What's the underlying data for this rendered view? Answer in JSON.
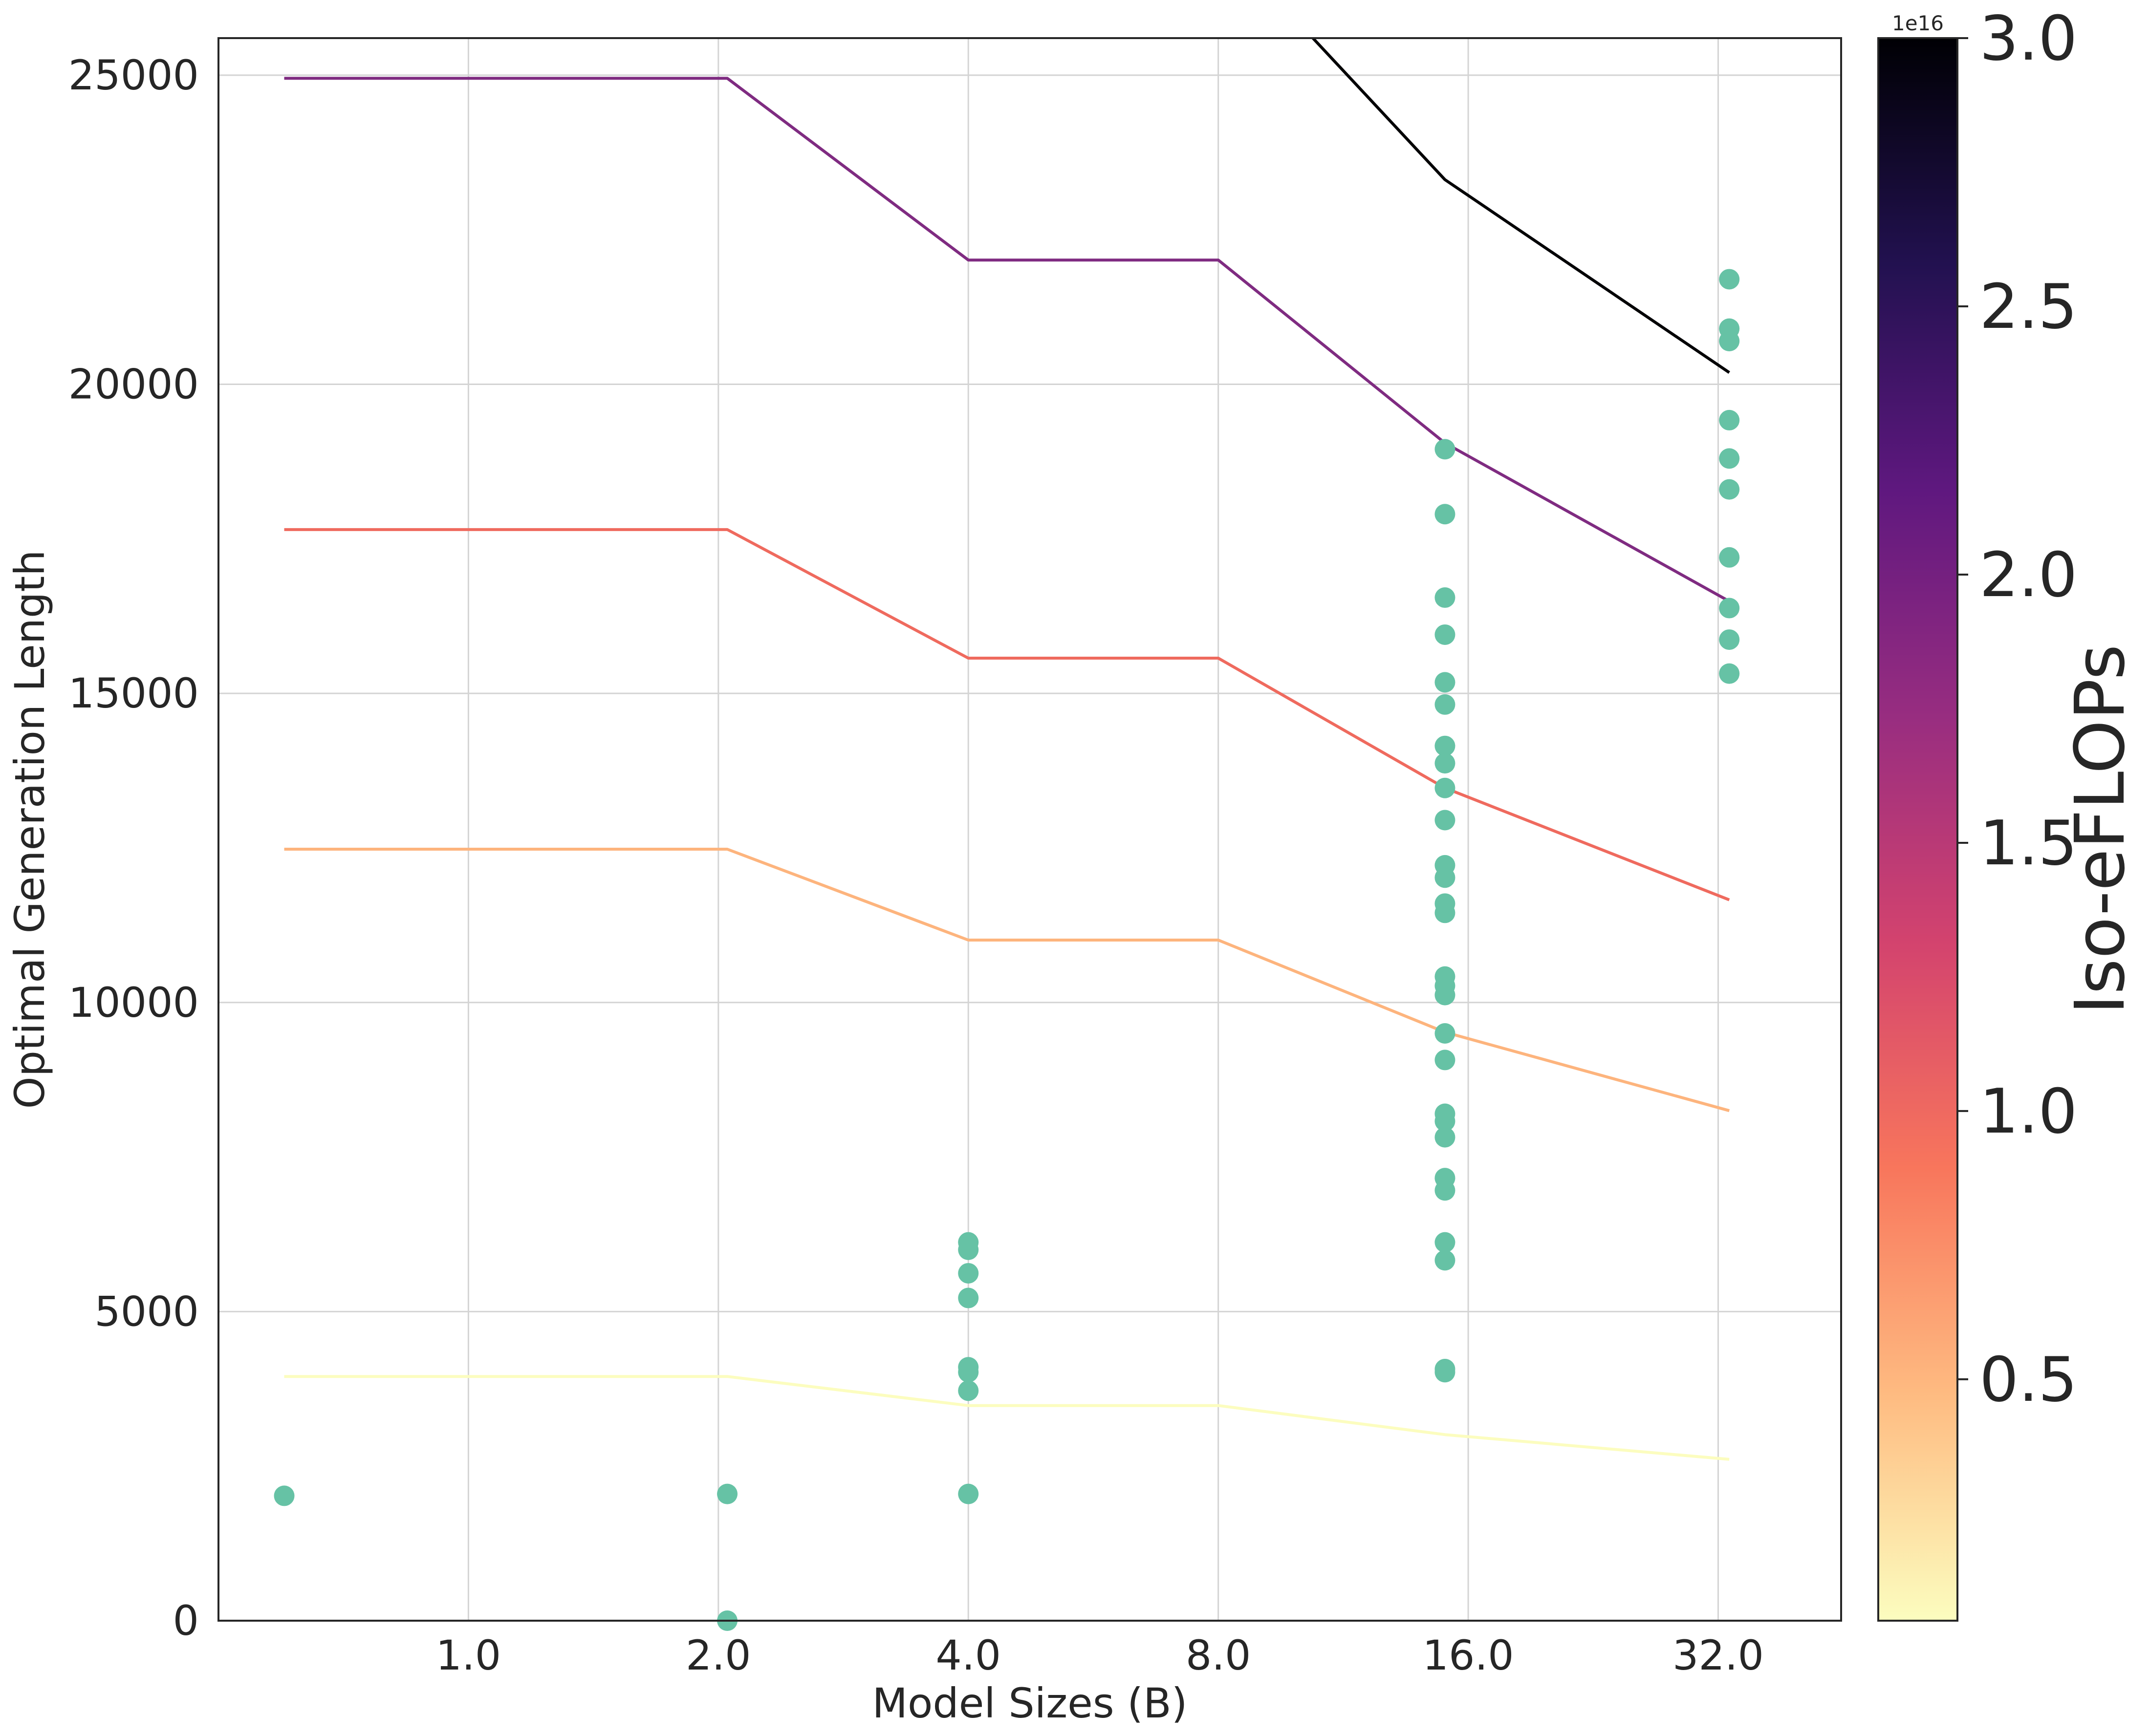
{
  "chart_data": {
    "type": "line",
    "xlabel": "Model Sizes (B)",
    "ylabel": "Optimal Generation Length",
    "x_scale": "log2",
    "xlim": [
      0.5,
      45
    ],
    "ylim": [
      0,
      25600
    ],
    "xticks": [
      1,
      2,
      4,
      8,
      16,
      32
    ],
    "xtick_labels": [
      "1.0",
      "2.0",
      "4.0",
      "8.0",
      "16.0",
      "32.0"
    ],
    "yticks": [
      0,
      5000,
      10000,
      15000,
      20000,
      25000
    ],
    "ytick_labels": [
      "0",
      "5000",
      "10000",
      "15000",
      "20000",
      "25000"
    ],
    "grid": true,
    "series": [
      {
        "iso_eflops": 0.05,
        "color": "#fcfdbf",
        "x": [
          0.6,
          2.05,
          4.0,
          8.0,
          15.0,
          33.0
        ],
        "y": [
          3950,
          3950,
          3480,
          3480,
          3010,
          2610
        ]
      },
      {
        "iso_eflops": 0.5,
        "color": "#fdb47d",
        "x": [
          0.6,
          2.05,
          4.0,
          8.0,
          15.0,
          33.0
        ],
        "y": [
          12480,
          12480,
          11010,
          11010,
          9520,
          8250
        ]
      },
      {
        "iso_eflops": 1.0,
        "color": "#ef6a5e",
        "x": [
          0.6,
          2.05,
          4.0,
          8.0,
          15.0,
          33.0
        ],
        "y": [
          17650,
          17650,
          15570,
          15570,
          13470,
          11660
        ]
      },
      {
        "iso_eflops": 2.0,
        "color": "#7f2b81",
        "x": [
          0.6,
          2.05,
          4.0,
          8.0,
          15.0,
          33.0
        ],
        "y": [
          24950,
          24950,
          22010,
          22010,
          19050,
          16490
        ]
      },
      {
        "iso_eflops": 3.0,
        "color": "#000004",
        "x": [
          10.4,
          15.0,
          33.0
        ],
        "y": [
          25600,
          23310,
          20190
        ]
      }
    ],
    "scatter": {
      "color": "#66c2a5",
      "points": [
        {
          "x": 0.6,
          "y": 2020
        },
        {
          "x": 2.05,
          "y": 2050
        },
        {
          "x": 2.05,
          "y": 0
        },
        {
          "x": 4.0,
          "y": 6120
        },
        {
          "x": 4.0,
          "y": 6000
        },
        {
          "x": 4.0,
          "y": 5620
        },
        {
          "x": 4.0,
          "y": 5220
        },
        {
          "x": 4.0,
          "y": 4100
        },
        {
          "x": 4.0,
          "y": 4020
        },
        {
          "x": 4.0,
          "y": 3720
        },
        {
          "x": 4.0,
          "y": 2050
        },
        {
          "x": 15.0,
          "y": 18950
        },
        {
          "x": 15.0,
          "y": 17900
        },
        {
          "x": 15.0,
          "y": 16550
        },
        {
          "x": 15.0,
          "y": 15950
        },
        {
          "x": 15.0,
          "y": 15180
        },
        {
          "x": 15.0,
          "y": 14820
        },
        {
          "x": 15.0,
          "y": 14150
        },
        {
          "x": 15.0,
          "y": 13870
        },
        {
          "x": 15.0,
          "y": 13470
        },
        {
          "x": 15.0,
          "y": 12950
        },
        {
          "x": 15.0,
          "y": 12220
        },
        {
          "x": 15.0,
          "y": 12020
        },
        {
          "x": 15.0,
          "y": 11600
        },
        {
          "x": 15.0,
          "y": 11450
        },
        {
          "x": 15.0,
          "y": 10420
        },
        {
          "x": 15.0,
          "y": 10270
        },
        {
          "x": 15.0,
          "y": 10120
        },
        {
          "x": 15.0,
          "y": 9500
        },
        {
          "x": 15.0,
          "y": 9070
        },
        {
          "x": 15.0,
          "y": 8200
        },
        {
          "x": 15.0,
          "y": 8080
        },
        {
          "x": 15.0,
          "y": 7820
        },
        {
          "x": 15.0,
          "y": 7160
        },
        {
          "x": 15.0,
          "y": 6960
        },
        {
          "x": 15.0,
          "y": 6120
        },
        {
          "x": 15.0,
          "y": 5830
        },
        {
          "x": 15.0,
          "y": 4070
        },
        {
          "x": 15.0,
          "y": 4020
        },
        {
          "x": 33.0,
          "y": 21700
        },
        {
          "x": 33.0,
          "y": 20900
        },
        {
          "x": 33.0,
          "y": 20700
        },
        {
          "x": 33.0,
          "y": 19420
        },
        {
          "x": 33.0,
          "y": 18800
        },
        {
          "x": 33.0,
          "y": 18300
        },
        {
          "x": 33.0,
          "y": 17200
        },
        {
          "x": 33.0,
          "y": 16380
        },
        {
          "x": 33.0,
          "y": 15870
        },
        {
          "x": 33.0,
          "y": 15320
        }
      ]
    },
    "colorbar": {
      "label": "Iso-eFLOPs",
      "colormap": "magma_r",
      "range": [
        0.05,
        3.0
      ],
      "offset_text": "1e16",
      "ticks": [
        0.5,
        1.0,
        1.5,
        2.0,
        2.5,
        3.0
      ],
      "tick_labels": [
        "0.5",
        "1.0",
        "1.5",
        "2.0",
        "2.5",
        "3.0"
      ],
      "gradient_stops": [
        "#fcfdbf",
        "#febb81",
        "#f8765c",
        "#d3436e",
        "#982d80",
        "#5f187f",
        "#221150",
        "#000004"
      ]
    }
  }
}
